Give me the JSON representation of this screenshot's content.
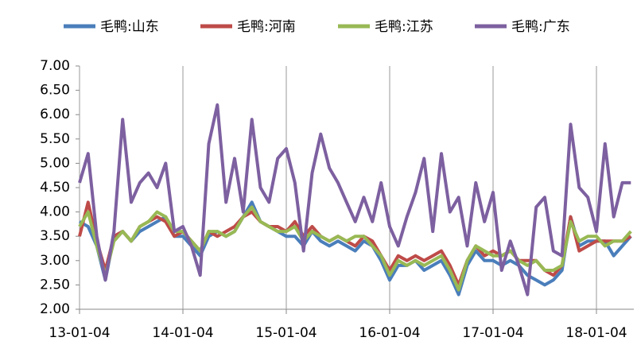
{
  "chart_data": {
    "type": "line",
    "categories": [
      "13-01-04",
      null,
      null,
      null,
      null,
      null,
      null,
      null,
      null,
      null,
      null,
      null,
      "14-01-04",
      null,
      null,
      null,
      null,
      null,
      null,
      null,
      null,
      null,
      null,
      null,
      "15-01-04",
      null,
      null,
      null,
      null,
      null,
      null,
      null,
      null,
      null,
      null,
      null,
      "16-01-04",
      null,
      null,
      null,
      null,
      null,
      null,
      null,
      null,
      null,
      null,
      null,
      "17-01-04",
      null,
      null,
      null,
      null,
      null,
      null,
      null,
      null,
      null,
      null,
      null,
      "18-01-04",
      null,
      null,
      null,
      null
    ],
    "series": [
      {
        "name": "毛鸭:山东",
        "color": "#4a7ebb",
        "values": [
          3.8,
          3.7,
          3.3,
          2.6,
          3.5,
          3.6,
          3.4,
          3.6,
          3.7,
          3.8,
          3.9,
          3.5,
          3.5,
          3.3,
          3.1,
          3.5,
          3.6,
          3.5,
          3.6,
          3.9,
          4.2,
          3.8,
          3.7,
          3.6,
          3.5,
          3.5,
          3.3,
          3.6,
          3.4,
          3.3,
          3.4,
          3.3,
          3.2,
          3.4,
          3.3,
          3.0,
          2.6,
          2.9,
          2.9,
          3.0,
          2.8,
          2.9,
          3.0,
          2.7,
          2.3,
          2.9,
          3.2,
          3.0,
          3.0,
          2.9,
          3.0,
          2.9,
          2.7,
          2.6,
          2.5,
          2.6,
          2.8,
          3.9,
          3.3,
          3.4,
          3.4,
          3.4,
          3.1,
          3.3,
          3.5
        ]
      },
      {
        "name": "毛鸭:河南",
        "color": "#be4b48",
        "values": [
          3.5,
          4.2,
          3.4,
          2.8,
          3.5,
          3.6,
          3.4,
          3.7,
          3.8,
          3.9,
          3.8,
          3.5,
          3.6,
          3.4,
          3.2,
          3.6,
          3.5,
          3.6,
          3.7,
          3.9,
          4.0,
          3.8,
          3.7,
          3.7,
          3.6,
          3.8,
          3.5,
          3.7,
          3.5,
          3.4,
          3.5,
          3.4,
          3.3,
          3.5,
          3.4,
          3.1,
          2.8,
          3.1,
          3.0,
          3.1,
          3.0,
          3.1,
          3.2,
          2.9,
          2.5,
          3.0,
          3.3,
          3.1,
          3.2,
          3.1,
          3.2,
          3.0,
          3.0,
          3.0,
          2.8,
          2.7,
          2.9,
          3.9,
          3.2,
          3.3,
          3.4,
          3.4,
          3.4,
          3.4,
          3.5
        ]
      },
      {
        "name": "毛鸭:江苏",
        "color": "#98b954",
        "values": [
          3.7,
          4.0,
          3.3,
          2.7,
          3.4,
          3.6,
          3.4,
          3.7,
          3.8,
          4.0,
          3.9,
          3.6,
          3.6,
          3.4,
          3.2,
          3.6,
          3.6,
          3.5,
          3.6,
          3.9,
          4.1,
          3.8,
          3.7,
          3.6,
          3.6,
          3.7,
          3.4,
          3.6,
          3.5,
          3.4,
          3.5,
          3.4,
          3.5,
          3.5,
          3.3,
          3.1,
          2.7,
          3.0,
          2.9,
          3.0,
          2.9,
          3.0,
          3.1,
          2.8,
          2.4,
          3.0,
          3.3,
          3.2,
          3.1,
          3.1,
          3.2,
          3.0,
          2.9,
          3.0,
          2.8,
          2.8,
          2.9,
          3.8,
          3.4,
          3.5,
          3.5,
          3.3,
          3.4,
          3.4,
          3.6
        ]
      },
      {
        "name": "毛鸭:广东",
        "color": "#7d60a0",
        "values": [
          4.6,
          5.2,
          3.5,
          2.6,
          3.6,
          5.9,
          4.2,
          4.6,
          4.8,
          4.5,
          5.0,
          3.6,
          3.7,
          3.3,
          2.7,
          5.4,
          6.2,
          4.2,
          5.1,
          4.0,
          5.9,
          4.5,
          4.2,
          5.1,
          5.3,
          4.6,
          3.2,
          4.8,
          5.6,
          4.9,
          4.6,
          4.2,
          3.8,
          4.3,
          3.8,
          4.6,
          3.7,
          3.3,
          3.9,
          4.4,
          5.1,
          3.6,
          5.2,
          4.0,
          4.3,
          3.3,
          4.6,
          3.8,
          4.4,
          2.8,
          3.4,
          2.9,
          2.3,
          4.1,
          4.3,
          3.2,
          3.1,
          5.8,
          4.5,
          4.3,
          3.6,
          5.4,
          3.9,
          4.6,
          4.6
        ]
      }
    ],
    "ylim": [
      2,
      7
    ],
    "yticks": [
      {
        "value": 2,
        "label": "2.00"
      },
      {
        "value": 2.5,
        "label": "2.50"
      },
      {
        "value": 3,
        "label": "3.00"
      },
      {
        "value": 3.5,
        "label": "3.50"
      },
      {
        "value": 4,
        "label": "4.00"
      },
      {
        "value": 4.5,
        "label": "4.50"
      },
      {
        "value": 5,
        "label": "5.00"
      },
      {
        "value": 5.5,
        "label": "5.50"
      },
      {
        "value": 6,
        "label": "6.00"
      },
      {
        "value": 6.5,
        "label": "6.50"
      },
      {
        "value": 7,
        "label": "7.00"
      }
    ],
    "grid": true,
    "legend": "top"
  }
}
